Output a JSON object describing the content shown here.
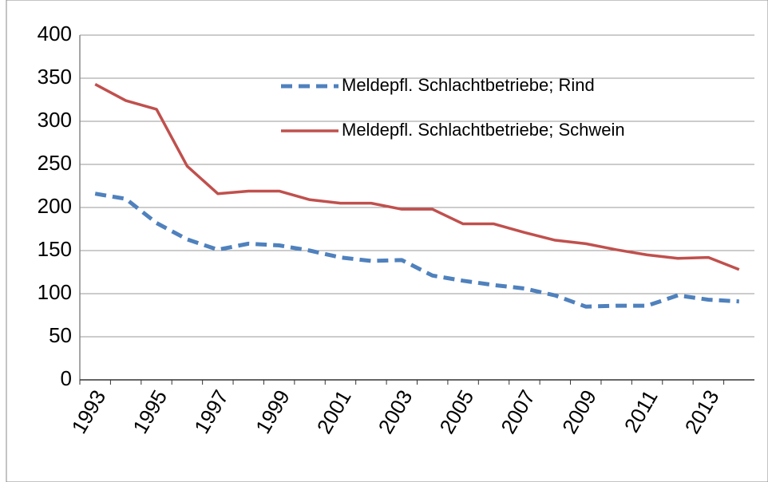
{
  "chart_data": {
    "type": "line",
    "categories": [
      "1993",
      null,
      "1995",
      null,
      "1997",
      null,
      "1999",
      null,
      "2001",
      null,
      "2003",
      null,
      "2005",
      null,
      "2007",
      null,
      "2009",
      null,
      "2011",
      null,
      "2013",
      null
    ],
    "series": [
      {
        "name": "Meldepfl. Schlachtbetriebe; Rind",
        "color": "#4f81bd",
        "dash": true,
        "values": [
          216,
          210,
          182,
          163,
          151,
          158,
          156,
          150,
          142,
          138,
          139,
          121,
          115,
          110,
          106,
          98,
          85,
          86,
          86,
          98,
          93,
          91
        ]
      },
      {
        "name": "Meldepfl. Schlachtbetriebe; Schwein",
        "color": "#c0504d",
        "dash": false,
        "values": [
          343,
          324,
          314,
          248,
          216,
          219,
          219,
          209,
          205,
          205,
          198,
          198,
          181,
          181,
          171,
          162,
          158,
          151,
          145,
          141,
          142,
          128
        ]
      }
    ],
    "ylim": [
      0,
      400
    ],
    "yticks": [
      0,
      50,
      100,
      150,
      200,
      250,
      300,
      350,
      400
    ],
    "grid": true
  }
}
